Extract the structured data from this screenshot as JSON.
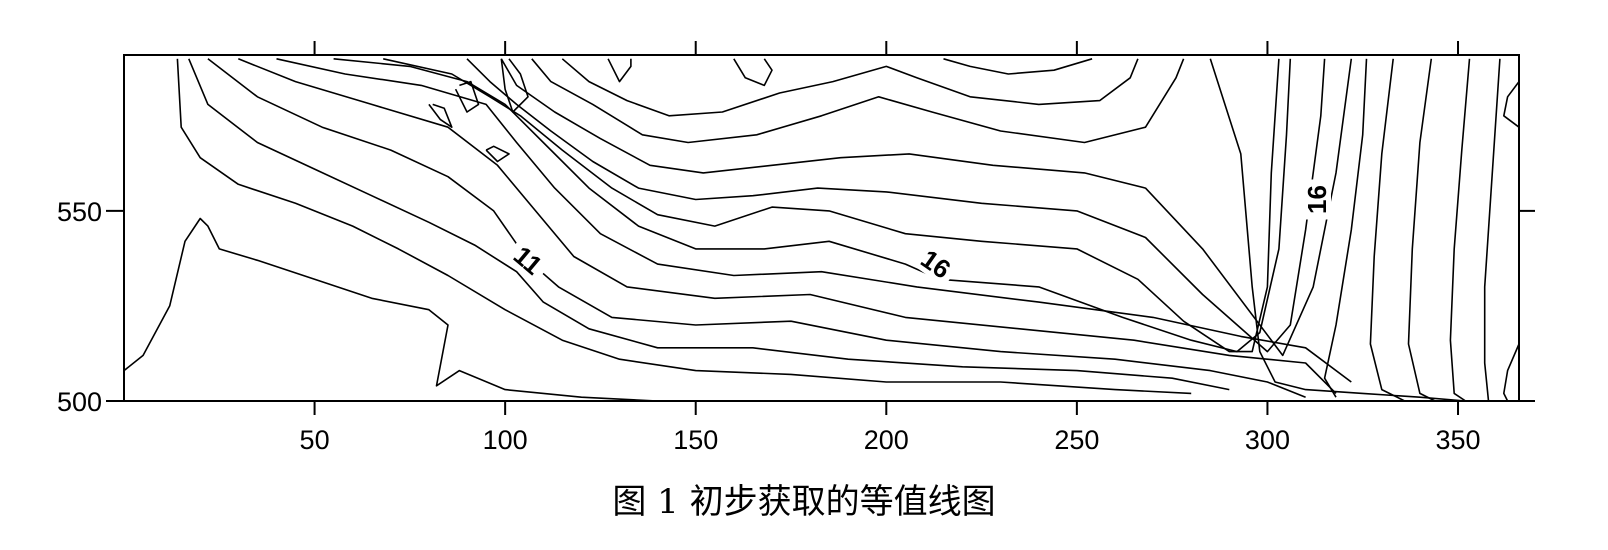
{
  "chart_data": {
    "type": "contour",
    "title": "",
    "xlabel": "",
    "ylabel": "",
    "xlim": [
      0,
      366
    ],
    "ylim": [
      500,
      591
    ],
    "x_ticks": [
      50,
      100,
      150,
      200,
      250,
      300,
      350
    ],
    "y_ticks": [
      500,
      550
    ],
    "x_tick_labels": [
      "50",
      "100",
      "150",
      "200",
      "250",
      "300",
      "350"
    ],
    "y_tick_labels": [
      "500",
      "550"
    ],
    "grid": false,
    "contour_labels": [
      {
        "text": "11",
        "x": 106,
        "y": 537
      },
      {
        "text": "16",
        "x": 213,
        "y": 536
      },
      {
        "text": "16",
        "x": 313,
        "y": 553
      }
    ],
    "contour_lines": [
      {
        "level": "a",
        "points": [
          [
            0,
            508
          ],
          [
            5,
            512
          ],
          [
            12,
            525
          ],
          [
            16,
            542
          ],
          [
            20,
            548
          ],
          [
            22,
            546
          ],
          [
            25,
            540
          ],
          [
            35,
            537
          ],
          [
            50,
            532
          ],
          [
            65,
            527
          ],
          [
            80,
            524
          ],
          [
            85,
            520
          ],
          [
            82,
            504
          ],
          [
            88,
            508
          ],
          [
            100,
            503
          ],
          [
            120,
            501
          ],
          [
            140,
            500
          ]
        ]
      },
      {
        "level": "b",
        "points": [
          [
            14,
            590
          ],
          [
            15,
            572
          ],
          [
            20,
            564
          ],
          [
            30,
            557
          ],
          [
            45,
            552
          ],
          [
            60,
            546
          ],
          [
            72,
            540
          ],
          [
            85,
            533
          ],
          [
            100,
            524
          ],
          [
            115,
            516
          ],
          [
            130,
            511
          ],
          [
            150,
            508
          ],
          [
            175,
            507
          ],
          [
            200,
            505
          ],
          [
            230,
            505
          ],
          [
            260,
            503
          ],
          [
            280,
            502
          ]
        ]
      },
      {
        "level": "c",
        "points": [
          [
            17,
            590
          ],
          [
            22,
            578
          ],
          [
            35,
            568
          ],
          [
            50,
            561
          ],
          [
            65,
            554
          ],
          [
            80,
            547
          ],
          [
            92,
            541
          ],
          [
            103,
            534
          ],
          [
            110,
            526
          ],
          [
            122,
            519
          ],
          [
            140,
            514
          ],
          [
            165,
            514
          ],
          [
            190,
            511
          ],
          [
            220,
            509
          ],
          [
            250,
            508
          ],
          [
            275,
            506
          ],
          [
            290,
            503
          ]
        ]
      },
      {
        "level": "d",
        "points": [
          [
            22,
            590
          ],
          [
            35,
            580
          ],
          [
            52,
            572
          ],
          [
            70,
            566
          ],
          [
            85,
            559
          ],
          [
            97,
            550
          ],
          [
            106,
            537
          ],
          [
            114,
            530
          ],
          [
            128,
            522
          ],
          [
            150,
            520
          ],
          [
            175,
            521
          ],
          [
            200,
            516
          ],
          [
            230,
            513
          ],
          [
            260,
            511
          ],
          [
            285,
            508
          ],
          [
            300,
            505
          ],
          [
            310,
            501
          ]
        ]
      },
      {
        "level": "e",
        "points": [
          [
            30,
            590
          ],
          [
            45,
            584
          ],
          [
            65,
            578
          ],
          [
            85,
            572
          ],
          [
            98,
            562
          ],
          [
            108,
            550
          ],
          [
            118,
            538
          ],
          [
            132,
            530
          ],
          [
            155,
            527
          ],
          [
            180,
            528
          ],
          [
            205,
            522
          ],
          [
            235,
            519
          ],
          [
            265,
            516
          ],
          [
            290,
            512
          ],
          [
            310,
            510
          ],
          [
            318,
            502
          ]
        ]
      },
      {
        "level": "f",
        "points": [
          [
            40,
            590
          ],
          [
            58,
            586
          ],
          [
            78,
            583
          ],
          [
            95,
            578
          ],
          [
            103,
            568
          ],
          [
            113,
            556
          ],
          [
            125,
            544
          ],
          [
            140,
            536
          ],
          [
            160,
            533
          ],
          [
            183,
            534
          ],
          [
            208,
            530
          ],
          [
            240,
            526
          ],
          [
            270,
            522
          ],
          [
            293,
            517
          ],
          [
            310,
            514
          ],
          [
            322,
            505
          ]
        ]
      },
      {
        "level": "g",
        "points": [
          [
            55,
            590
          ],
          [
            75,
            588
          ],
          [
            90,
            584
          ],
          [
            100,
            578
          ],
          [
            110,
            568
          ],
          [
            122,
            556
          ],
          [
            135,
            546
          ],
          [
            150,
            540
          ],
          [
            168,
            540
          ],
          [
            185,
            542
          ],
          [
            205,
            536
          ],
          [
            214,
            532
          ],
          [
            240,
            530
          ],
          [
            262,
            522
          ],
          [
            280,
            516
          ],
          [
            292,
            513
          ],
          [
            298,
            518
          ],
          [
            303,
            540
          ],
          [
            305,
            570
          ],
          [
            306,
            590
          ]
        ]
      },
      {
        "level": "h",
        "points": [
          [
            68,
            590
          ],
          [
            86,
            586
          ],
          [
            96,
            580
          ],
          [
            104,
            575
          ],
          [
            115,
            566
          ],
          [
            128,
            556
          ],
          [
            140,
            549
          ],
          [
            155,
            546
          ],
          [
            170,
            551
          ],
          [
            185,
            550
          ],
          [
            205,
            544
          ],
          [
            225,
            542
          ],
          [
            250,
            540
          ],
          [
            266,
            532
          ],
          [
            278,
            521
          ],
          [
            290,
            513
          ],
          [
            296,
            513
          ],
          [
            300,
            530
          ],
          [
            301,
            560
          ],
          [
            303,
            590
          ]
        ]
      },
      {
        "level": "i",
        "points": [
          [
            90,
            590
          ],
          [
            96,
            584
          ],
          [
            103,
            578
          ],
          [
            112,
            571
          ],
          [
            123,
            563
          ],
          [
            135,
            556
          ],
          [
            150,
            553
          ],
          [
            165,
            554
          ],
          [
            182,
            556
          ],
          [
            200,
            555
          ],
          [
            225,
            552
          ],
          [
            250,
            550
          ],
          [
            268,
            543
          ],
          [
            283,
            528
          ],
          [
            300,
            513
          ],
          [
            306,
            520
          ],
          [
            310,
            545
          ],
          [
            314,
            575
          ],
          [
            315,
            590
          ]
        ]
      },
      {
        "level": "j",
        "points": [
          [
            99,
            590
          ],
          [
            103,
            583
          ],
          [
            113,
            576
          ],
          [
            125,
            569
          ],
          [
            138,
            562
          ],
          [
            152,
            560
          ],
          [
            170,
            562
          ],
          [
            188,
            564
          ],
          [
            206,
            565
          ],
          [
            228,
            562
          ],
          [
            252,
            560
          ],
          [
            268,
            556
          ],
          [
            283,
            540
          ],
          [
            304,
            512
          ],
          [
            312,
            530
          ],
          [
            318,
            560
          ],
          [
            322,
            590
          ]
        ]
      },
      {
        "level": "k",
        "points": [
          [
            107,
            590
          ],
          [
            112,
            584
          ],
          [
            123,
            578
          ],
          [
            136,
            570
          ],
          [
            148,
            568
          ],
          [
            166,
            570
          ],
          [
            183,
            575
          ],
          [
            198,
            580
          ],
          [
            212,
            576
          ],
          [
            230,
            571
          ],
          [
            252,
            568
          ],
          [
            268,
            572
          ],
          [
            276,
            585
          ],
          [
            278,
            590
          ]
        ]
      },
      {
        "level": "l",
        "points": [
          [
            115,
            590
          ],
          [
            122,
            584
          ],
          [
            132,
            579
          ],
          [
            143,
            575
          ],
          [
            157,
            576
          ],
          [
            172,
            581
          ],
          [
            186,
            584
          ],
          [
            200,
            588
          ],
          [
            208,
            585
          ],
          [
            222,
            580
          ],
          [
            240,
            578
          ],
          [
            256,
            579
          ],
          [
            264,
            585
          ],
          [
            266,
            590
          ]
        ]
      },
      {
        "level": "m",
        "points": [
          [
            99,
            590
          ],
          [
            100,
            582
          ],
          [
            102,
            576
          ],
          [
            106,
            580
          ],
          [
            104,
            586
          ],
          [
            101,
            590
          ]
        ]
      },
      {
        "level": "n",
        "points": [
          [
            127,
            590
          ],
          [
            130,
            584
          ],
          [
            133,
            588
          ],
          [
            133,
            590
          ]
        ]
      },
      {
        "level": "o",
        "points": [
          [
            160,
            590
          ],
          [
            163,
            585
          ],
          [
            168,
            583
          ],
          [
            170,
            587
          ],
          [
            168,
            590
          ]
        ]
      },
      {
        "level": "p",
        "points": [
          [
            80,
            578
          ],
          [
            83,
            574
          ],
          [
            86,
            572
          ],
          [
            84,
            577
          ],
          [
            81,
            578
          ]
        ]
      },
      {
        "level": "q",
        "points": [
          [
            87,
            582
          ],
          [
            90,
            576
          ],
          [
            93,
            578
          ],
          [
            91,
            584
          ],
          [
            88,
            583
          ]
        ]
      },
      {
        "level": "r",
        "points": [
          [
            95,
            566
          ],
          [
            98,
            563
          ],
          [
            101,
            565
          ],
          [
            97,
            567
          ],
          [
            95,
            566
          ]
        ]
      },
      {
        "level": "s",
        "points": [
          [
            215,
            590
          ],
          [
            222,
            588
          ],
          [
            232,
            586
          ],
          [
            244,
            587
          ],
          [
            254,
            590
          ]
        ]
      },
      {
        "level": "t",
        "points": [
          [
            285,
            590
          ],
          [
            293,
            565
          ],
          [
            296,
            530
          ],
          [
            298,
            513
          ],
          [
            302,
            505
          ],
          [
            310,
            503
          ],
          [
            325,
            502
          ],
          [
            340,
            501
          ],
          [
            352,
            500
          ]
        ]
      },
      {
        "level": "u",
        "points": [
          [
            326,
            590
          ],
          [
            325,
            570
          ],
          [
            322,
            545
          ],
          [
            318,
            520
          ],
          [
            315,
            506
          ],
          [
            318,
            501
          ]
        ]
      },
      {
        "level": "v",
        "points": [
          [
            333,
            590
          ],
          [
            330,
            565
          ],
          [
            328,
            538
          ],
          [
            327,
            515
          ],
          [
            330,
            503
          ],
          [
            336,
            500
          ]
        ]
      },
      {
        "level": "w",
        "points": [
          [
            343,
            590
          ],
          [
            340,
            568
          ],
          [
            338,
            540
          ],
          [
            337,
            515
          ],
          [
            340,
            502
          ],
          [
            344,
            500
          ]
        ]
      },
      {
        "level": "x",
        "points": [
          [
            353,
            590
          ],
          [
            351,
            566
          ],
          [
            349,
            540
          ],
          [
            348,
            516
          ],
          [
            349,
            502
          ],
          [
            352,
            500
          ]
        ]
      },
      {
        "level": "y",
        "points": [
          [
            361,
            590
          ],
          [
            359,
            560
          ],
          [
            357,
            530
          ],
          [
            357,
            510
          ],
          [
            358,
            500
          ]
        ]
      },
      {
        "level": "z",
        "points": [
          [
            366,
            584
          ],
          [
            363,
            580
          ],
          [
            362,
            575
          ],
          [
            366,
            572
          ]
        ]
      },
      {
        "level": "z2",
        "points": [
          [
            366,
            515
          ],
          [
            363,
            508
          ],
          [
            362,
            502
          ],
          [
            363,
            500
          ]
        ]
      }
    ]
  },
  "caption": "图 1  初步获取的等值线图"
}
